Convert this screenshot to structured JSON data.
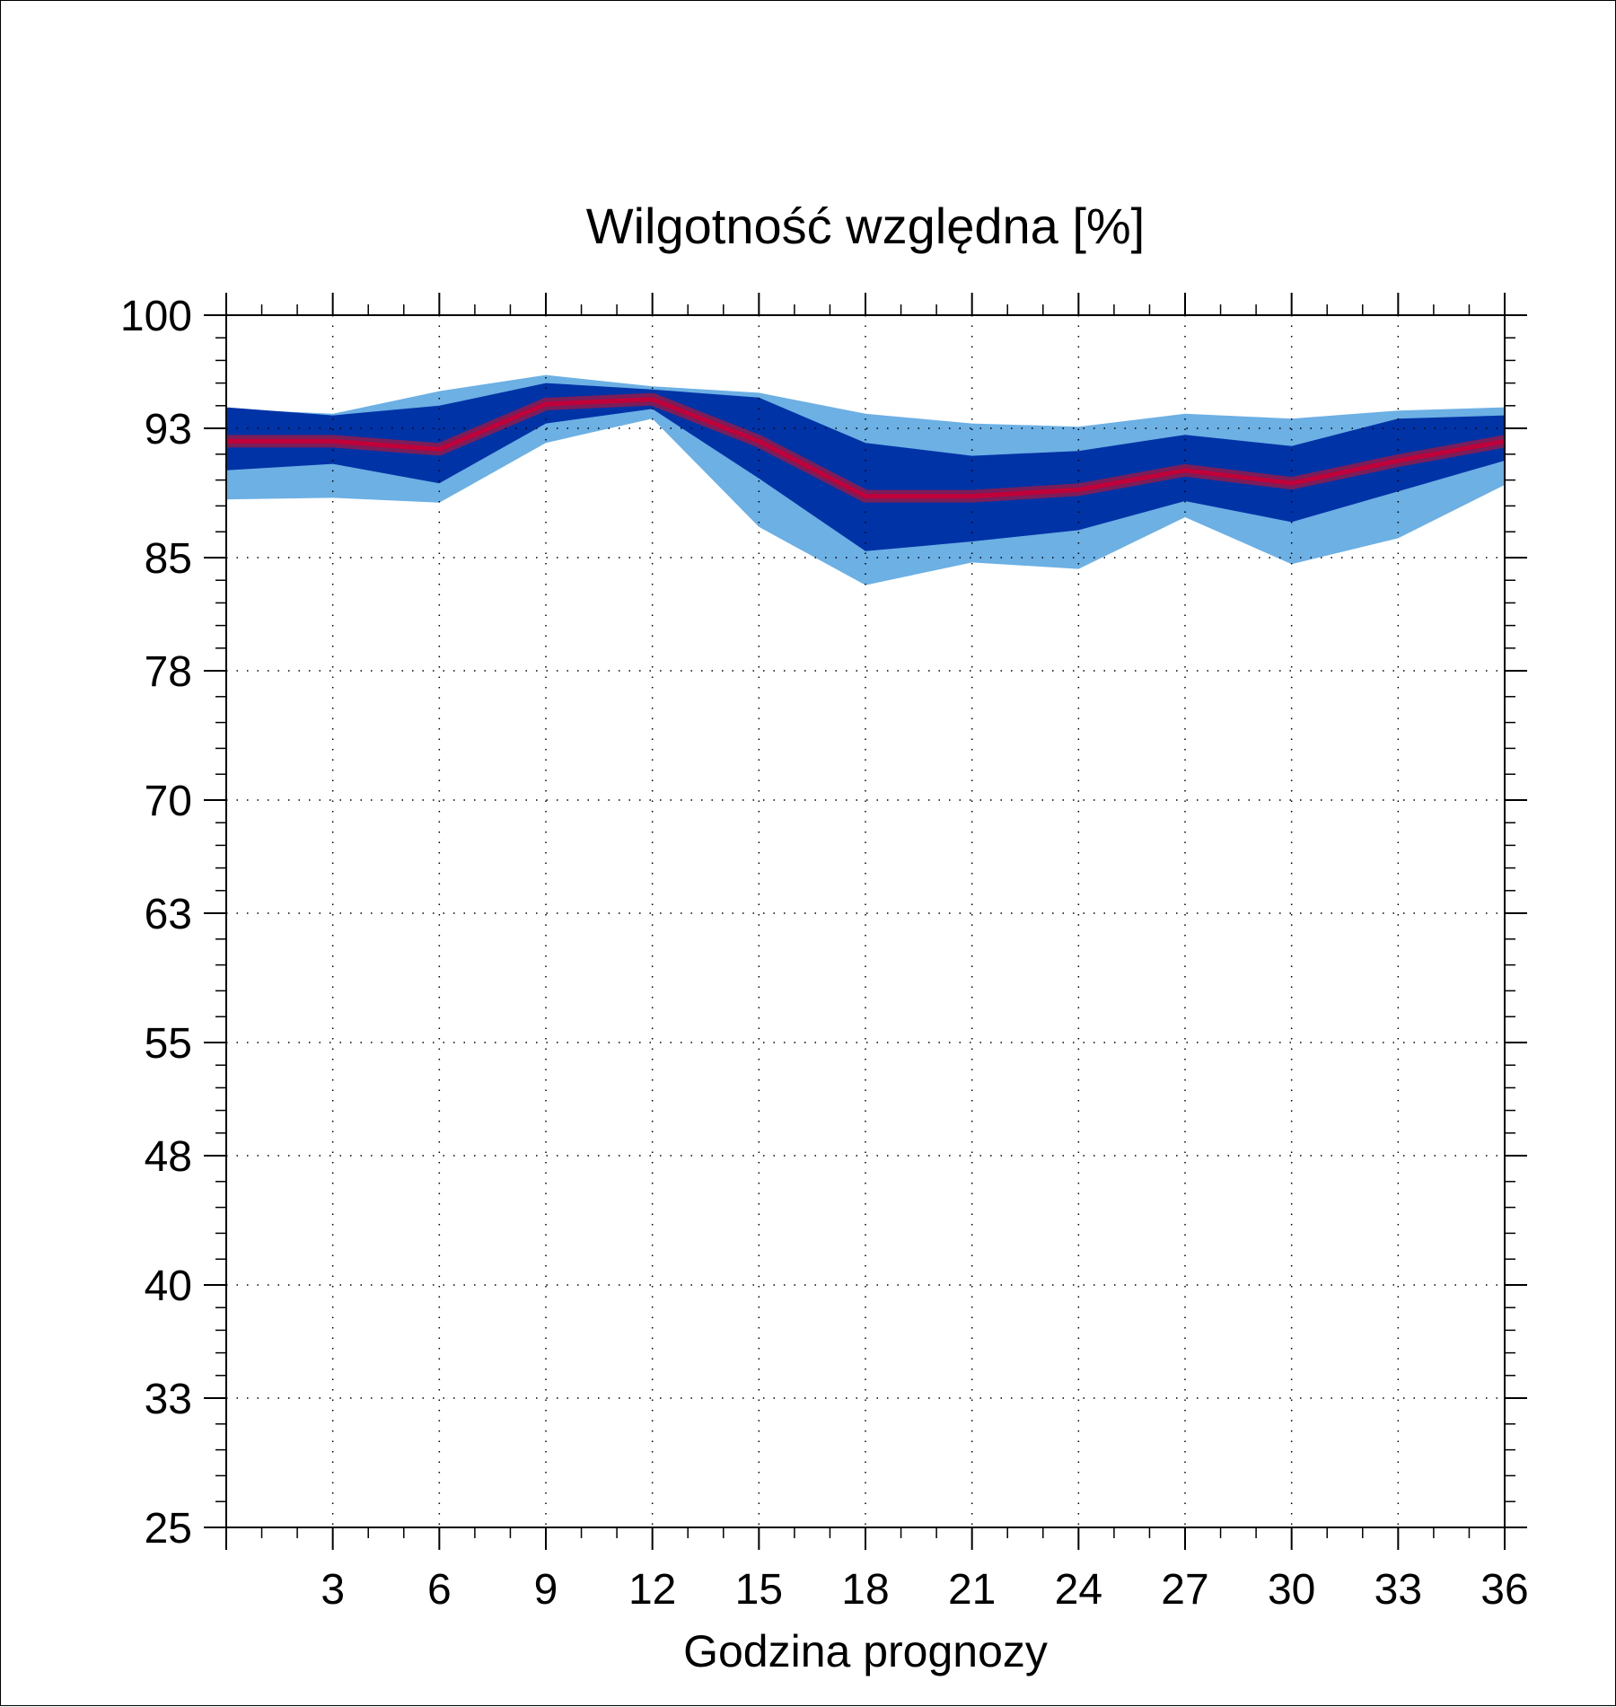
{
  "chart_data": {
    "type": "area",
    "title": "Wilgotność względna [%]",
    "xlabel": "Godzina prognozy",
    "ylabel": "",
    "xlim": [
      0,
      36
    ],
    "ylim": [
      25,
      100
    ],
    "x_ticks": [
      "3",
      "6",
      "9",
      "12",
      "15",
      "18",
      "21",
      "24",
      "27",
      "30",
      "33",
      "36"
    ],
    "y_ticks": [
      "100",
      "93",
      "85",
      "78",
      "70",
      "63",
      "55",
      "48",
      "40",
      "33",
      "25"
    ],
    "grid": true,
    "colors": {
      "outer_band": "#6CB0E4",
      "inner_band": "#0033A6",
      "median_line": "#C0003A",
      "median_outline": "#7A1E5A",
      "grid": "#000000"
    },
    "x": [
      0,
      3,
      6,
      9,
      12,
      15,
      18,
      21,
      24,
      27,
      30,
      33,
      36
    ],
    "series": [
      {
        "role": "outer_band_upper",
        "values": [
          94.2,
          93.9,
          95.3,
          96.3,
          95.6,
          95.2,
          93.9,
          93.3,
          93.1,
          93.9,
          93.6,
          94.1,
          94.3
        ]
      },
      {
        "role": "outer_band_lower",
        "values": [
          88.6,
          88.7,
          88.4,
          92.1,
          93.6,
          86.9,
          83.3,
          84.7,
          84.3,
          87.5,
          84.6,
          86.2,
          89.5
        ]
      },
      {
        "role": "inner_band_upper",
        "values": [
          94.3,
          93.8,
          94.4,
          95.8,
          95.4,
          94.9,
          92.1,
          91.3,
          91.6,
          92.6,
          91.9,
          93.6,
          93.8
        ]
      },
      {
        "role": "inner_band_lower",
        "values": [
          90.4,
          90.8,
          89.6,
          93.3,
          94.2,
          89.9,
          85.4,
          86.0,
          86.7,
          88.5,
          87.2,
          89.1,
          91.0
        ]
      },
      {
        "role": "median",
        "values": [
          92.2,
          92.2,
          91.7,
          94.5,
          94.8,
          92.2,
          88.8,
          88.8,
          89.2,
          90.4,
          89.6,
          91.0,
          92.2
        ]
      }
    ]
  }
}
